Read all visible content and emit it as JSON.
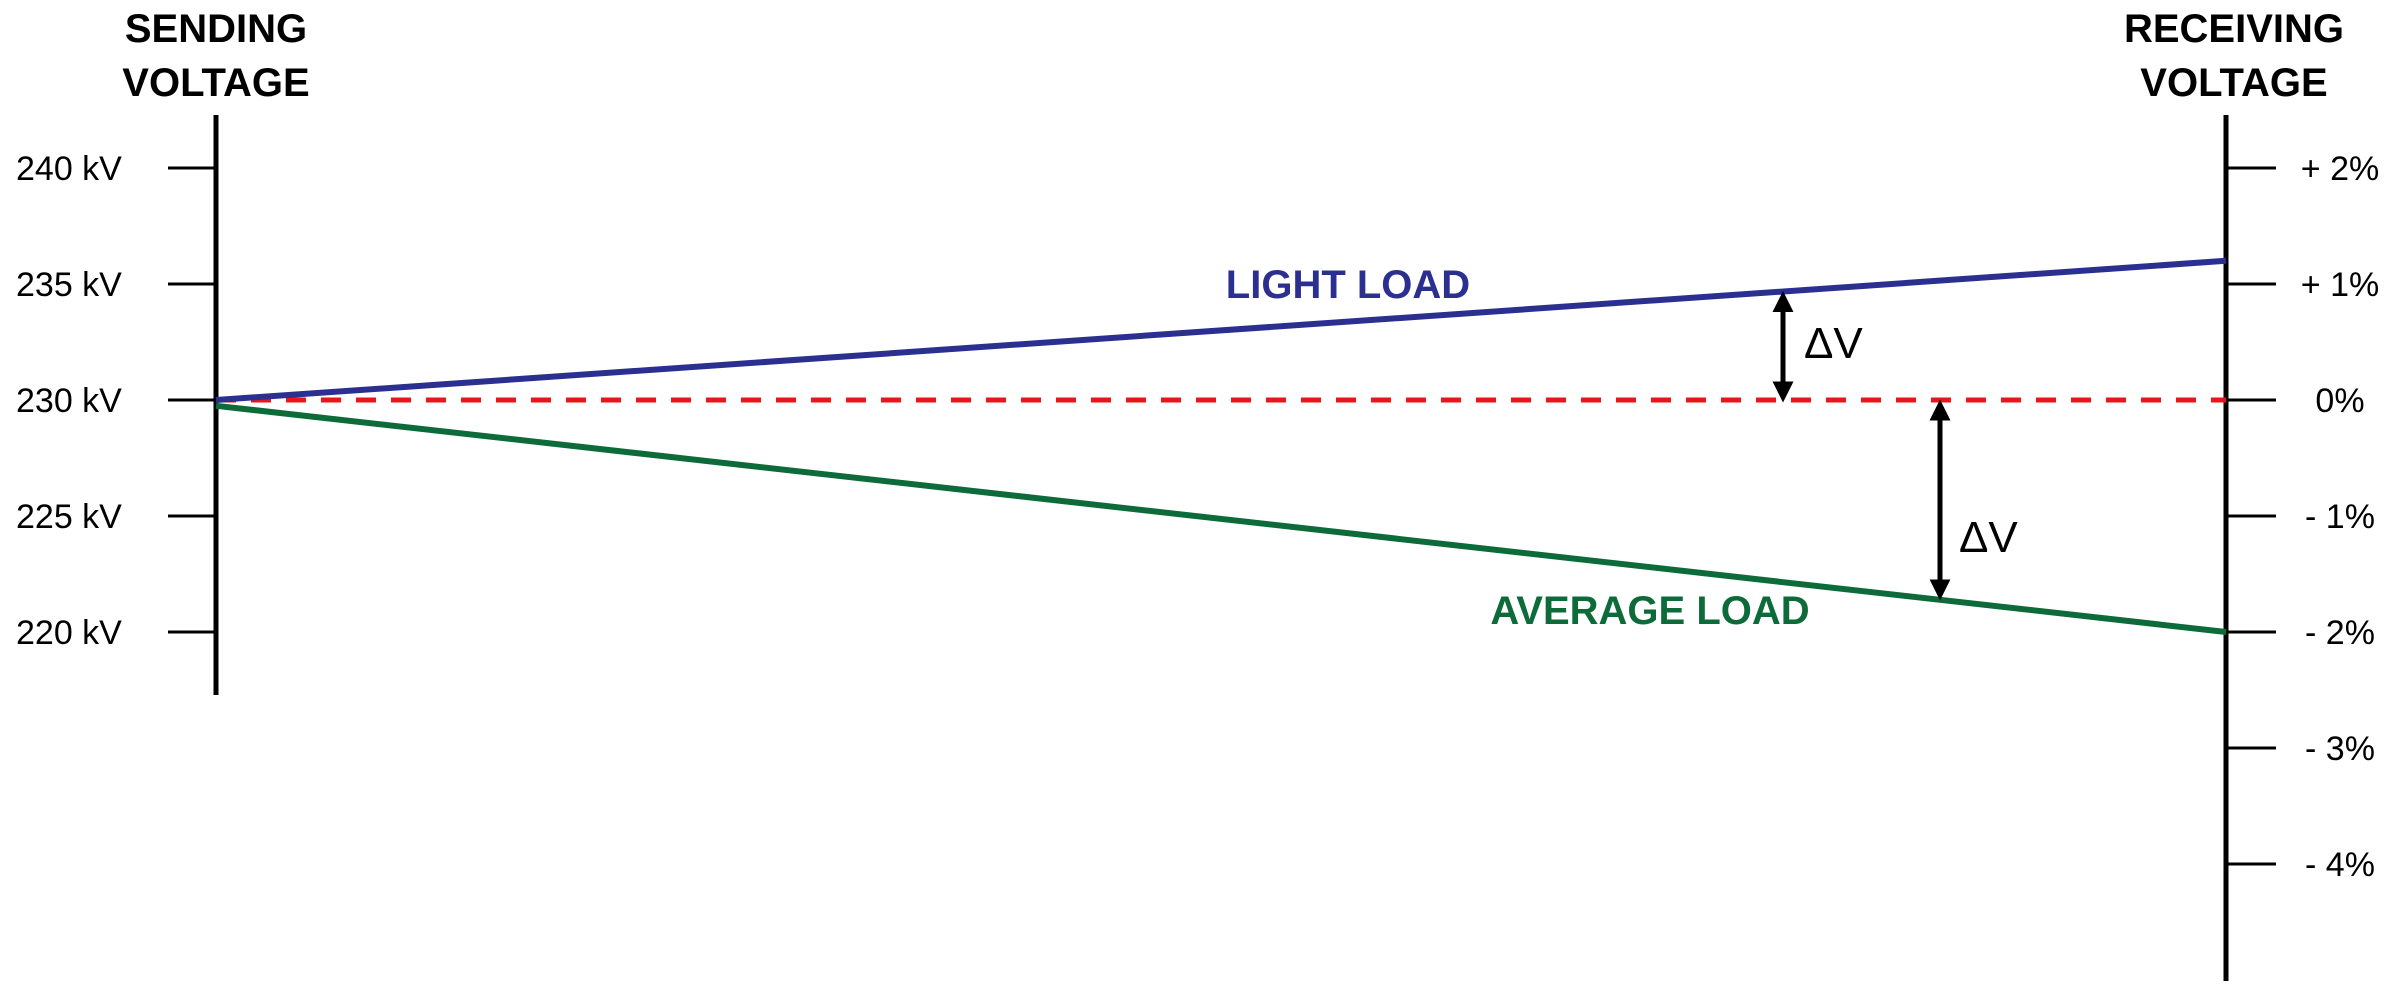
{
  "left_axis": {
    "title_line1": "SENDING",
    "title_line2": "VOLTAGE",
    "ticks": [
      "240 kV",
      "235 kV",
      "230 kV",
      "225 kV",
      "220 kV"
    ],
    "tick_values_kv": [
      240,
      235,
      230,
      225,
      220
    ]
  },
  "right_axis": {
    "title_line1": "RECEIVING",
    "title_line2": "VOLTAGE",
    "ticks": [
      "+ 2%",
      "+ 1%",
      "0%",
      "- 1%",
      "- 2%",
      "- 3%",
      "- 4%"
    ],
    "tick_values_pct": [
      2,
      1,
      0,
      -1,
      -2,
      -3,
      -4
    ]
  },
  "lines": {
    "light_load": {
      "label": "LIGHT LOAD",
      "color": "#2b2f8f",
      "start_pct": 0,
      "end_pct": 1.2
    },
    "average_load": {
      "label": "AVERAGE LOAD",
      "color": "#0d6b3a",
      "start_pct": -0.05,
      "end_pct": -2.0
    },
    "nominal": {
      "color": "#e8161b",
      "value_pct": 0
    }
  },
  "annotations": {
    "delta_v_light": "ΔV",
    "delta_v_average": "ΔV",
    "arrow_color": "#000000"
  }
}
